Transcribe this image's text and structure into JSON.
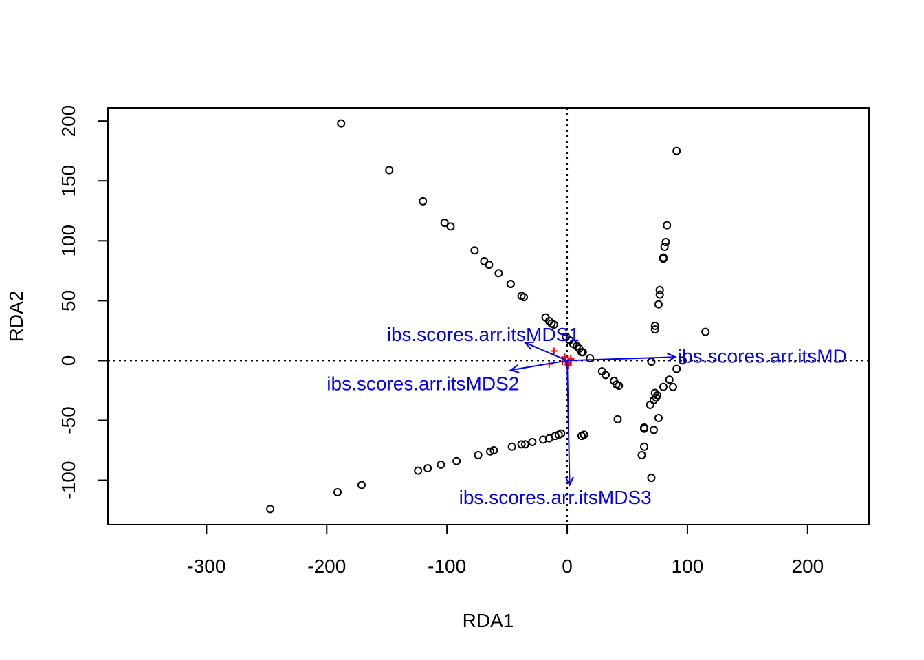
{
  "chart_data": {
    "type": "scatter",
    "title": "",
    "xlabel": "RDA1",
    "ylabel": "RDA2",
    "xlim": [
      -382,
      251
    ],
    "ylim": [
      -137,
      211
    ],
    "x_ticks": [
      -300,
      -200,
      -100,
      0,
      100,
      200
    ],
    "y_ticks": [
      -100,
      -50,
      0,
      50,
      100,
      150,
      200
    ],
    "x_tick_labels": [
      "-300",
      "-200",
      "-100",
      "0",
      "100",
      "200"
    ],
    "y_tick_labels": [
      "-100",
      "-50",
      "0",
      "50",
      "100",
      "150",
      "200"
    ],
    "grid": false,
    "reference_lines": {
      "x": 0,
      "y": 0,
      "style": "dotted"
    },
    "colors": {
      "sites": "#000000",
      "species": "#ff0000",
      "arrows": "#0000ff"
    },
    "sites": {
      "marker": "open-circle",
      "points": [
        [
          -188,
          198
        ],
        [
          -148,
          159
        ],
        [
          -120,
          133
        ],
        [
          -102,
          115
        ],
        [
          -97,
          112
        ],
        [
          -77,
          92
        ],
        [
          -69,
          83
        ],
        [
          -65,
          80
        ],
        [
          -57,
          73
        ],
        [
          -47,
          64
        ],
        [
          -47,
          64
        ],
        [
          -38,
          54
        ],
        [
          -36,
          53
        ],
        [
          -18,
          36
        ],
        [
          -15,
          33
        ],
        [
          -13,
          31
        ],
        [
          -11,
          30
        ],
        [
          -1,
          20
        ],
        [
          2,
          17
        ],
        [
          5,
          14
        ],
        [
          8,
          12
        ],
        [
          10,
          10
        ],
        [
          12,
          7
        ],
        [
          13,
          7
        ],
        [
          19,
          2
        ],
        [
          29,
          -9
        ],
        [
          32,
          -12
        ],
        [
          39,
          -17
        ],
        [
          41,
          -20
        ],
        [
          43,
          -21
        ],
        [
          42,
          -49
        ],
        [
          -247,
          -124
        ],
        [
          -191,
          -110
        ],
        [
          -171,
          -104
        ],
        [
          -124,
          -92
        ],
        [
          -116,
          -90
        ],
        [
          -105,
          -87
        ],
        [
          -92,
          -84
        ],
        [
          -74,
          -79
        ],
        [
          -64,
          -76
        ],
        [
          -61,
          -75
        ],
        [
          -46,
          -72
        ],
        [
          -38,
          -70
        ],
        [
          -35,
          -70
        ],
        [
          -29,
          -68
        ],
        [
          -20,
          -66
        ],
        [
          -15,
          -65
        ],
        [
          -10,
          -63
        ],
        [
          -7,
          -62
        ],
        [
          -5,
          -61
        ],
        [
          12,
          -63
        ],
        [
          14,
          -62
        ],
        [
          91,
          175
        ],
        [
          83,
          113
        ],
        [
          82,
          99
        ],
        [
          81,
          95
        ],
        [
          80,
          86
        ],
        [
          80,
          85
        ],
        [
          77,
          59
        ],
        [
          77,
          55
        ],
        [
          76,
          47
        ],
        [
          73,
          29
        ],
        [
          73,
          26
        ],
        [
          70,
          -1
        ],
        [
          115,
          24
        ],
        [
          96,
          0
        ],
        [
          91,
          -7
        ],
        [
          85,
          -16
        ],
        [
          80,
          -22
        ],
        [
          88,
          -22
        ],
        [
          73,
          -27
        ],
        [
          75,
          -29
        ],
        [
          74,
          -31
        ],
        [
          72,
          -33
        ],
        [
          69,
          -37
        ],
        [
          76,
          -48
        ],
        [
          64,
          -56
        ],
        [
          64,
          -57
        ],
        [
          72,
          -58
        ],
        [
          64,
          -72
        ],
        [
          62,
          -79
        ],
        [
          70,
          -98
        ]
      ]
    },
    "species": {
      "marker": "plus",
      "points": [
        [
          -11,
          8
        ],
        [
          -2,
          3
        ],
        [
          3,
          2
        ],
        [
          -15,
          -3
        ],
        [
          -4,
          -1
        ],
        [
          -1,
          -1
        ],
        [
          0,
          -3
        ],
        [
          1,
          -4
        ],
        [
          3,
          1
        ],
        [
          1,
          -2
        ]
      ]
    },
    "arrows": [
      {
        "label": "ibs.scores.arr.itsMDS1",
        "x": -35,
        "y": 15,
        "label_x": -150,
        "label_y": 22
      },
      {
        "label": "ibs.scores.arr.itsMDS2",
        "x": -47,
        "y": -8,
        "label_x": -200,
        "label_y": -19
      },
      {
        "label": "ibs.scores.arr.itsMDS3",
        "x": 2,
        "y": -104,
        "label_x": -90,
        "label_y": -114
      },
      {
        "label": "ibs.scores.arr.itsMD",
        "x": 90,
        "y": 3,
        "label_x": 92,
        "label_y": 4
      }
    ]
  }
}
